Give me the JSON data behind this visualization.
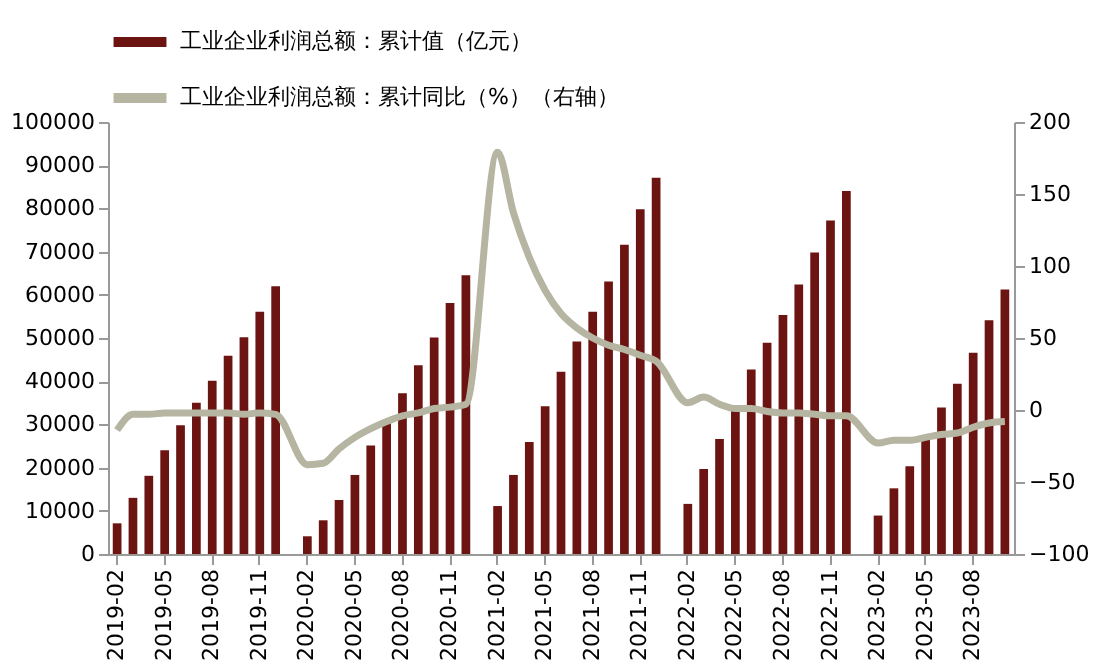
{
  "chart_data": {
    "type": "bar",
    "legend": "top",
    "grid": false,
    "categories": [
      "2019-02",
      null,
      null,
      "2019-05",
      null,
      null,
      "2019-08",
      null,
      null,
      "2019-11",
      null,
      null,
      "2020-02",
      null,
      null,
      "2020-05",
      null,
      null,
      "2020-08",
      null,
      null,
      "2020-11",
      null,
      null,
      "2021-02",
      null,
      null,
      "2021-05",
      null,
      null,
      "2021-08",
      null,
      null,
      "2021-11",
      null,
      null,
      "2022-02",
      null,
      null,
      "2022-05",
      null,
      null,
      "2022-08",
      null,
      null,
      "2022-11",
      null,
      null,
      "2023-02",
      null,
      null,
      "2023-05",
      null,
      null,
      "2023-08",
      null,
      null
    ],
    "ylim": [
      0,
      100000
    ],
    "yticks": [
      0,
      10000,
      20000,
      30000,
      40000,
      50000,
      60000,
      70000,
      80000,
      90000,
      100000
    ],
    "y2lim": [
      -100,
      200
    ],
    "y2ticks": [
      -100,
      -50,
      0,
      50,
      100,
      150,
      200
    ],
    "series": [
      {
        "name": "工业企业利润总额：累计值（亿元）",
        "color": "#6b1412",
        "values": [
          7100,
          13000,
          18100,
          24000,
          29800,
          35000,
          40100,
          45900,
          50200,
          56100,
          62000,
          null,
          4100,
          7800,
          12500,
          18300,
          25100,
          31000,
          37200,
          43700,
          50100,
          58100,
          64500,
          null,
          11100,
          18300,
          25900,
          34200,
          42200,
          49200,
          56100,
          63100,
          71600,
          79800,
          87100,
          null,
          11600,
          19700,
          26600,
          34400,
          42700,
          48900,
          55300,
          62400,
          69800,
          77200,
          84000,
          null,
          8900,
          15200,
          20300,
          26700,
          33900,
          39400,
          46600,
          54100,
          61200
        ]
      },
      {
        "name": "工业企业利润总额：累计同比（%）（右轴）",
        "type": "line",
        "axis": "y2",
        "color": "#b5b5a2",
        "values": [
          -14,
          -3,
          -3,
          -2,
          -2,
          -2,
          -2,
          -2,
          -3,
          -2,
          -3,
          null,
          -38,
          -37,
          -27,
          -19,
          -13,
          -8,
          -4,
          -2,
          1,
          2,
          4,
          null,
          179,
          137,
          106,
          83,
          67,
          57,
          50,
          45,
          42,
          38,
          34,
          null,
          5,
          9,
          4,
          1,
          1,
          -1,
          -2,
          -2,
          -3,
          -4,
          -4,
          null,
          -23,
          -21,
          -21,
          -19,
          -17,
          -16,
          -12,
          -9,
          -8
        ]
      }
    ]
  }
}
